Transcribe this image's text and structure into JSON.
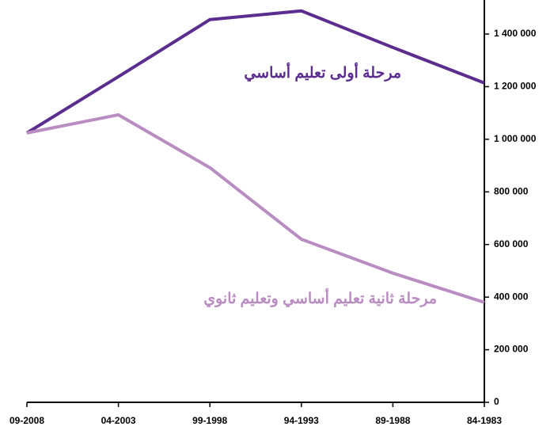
{
  "chart_data": {
    "type": "line",
    "categories": [
      "09-2008",
      "04-2003",
      "99-1998",
      "94-1993",
      "89-1988",
      "84-1983"
    ],
    "series": [
      {
        "name": "مرحلة أولى تعليم أساسي",
        "color": "#5b2d8e",
        "values": [
          1024000,
          1238000,
          1455000,
          1488000,
          1349000,
          1214000
        ]
      },
      {
        "name": "مرحلة ثانية تعليم أساسي وتعليم ثانوي",
        "color": "#b98cc2",
        "values": [
          1024000,
          1093000,
          892000,
          620000,
          491000,
          380000
        ]
      }
    ],
    "ylim": [
      0,
      1400000
    ],
    "yticks": [
      0,
      {
        "value": 200000,
        "label": "200 000"
      },
      {
        "value": 400000,
        "label": "400 000"
      },
      {
        "value": 600000,
        "label": "600 000"
      },
      {
        "value": 800000,
        "label": "800 000"
      },
      {
        "value": 1000000,
        "label": "1 000 000"
      },
      {
        "value": 1200000,
        "label": "1 200 000"
      },
      {
        "value": 1400000,
        "label": "1 400 000"
      }
    ],
    "y_axis_side": "right",
    "grid": false
  }
}
